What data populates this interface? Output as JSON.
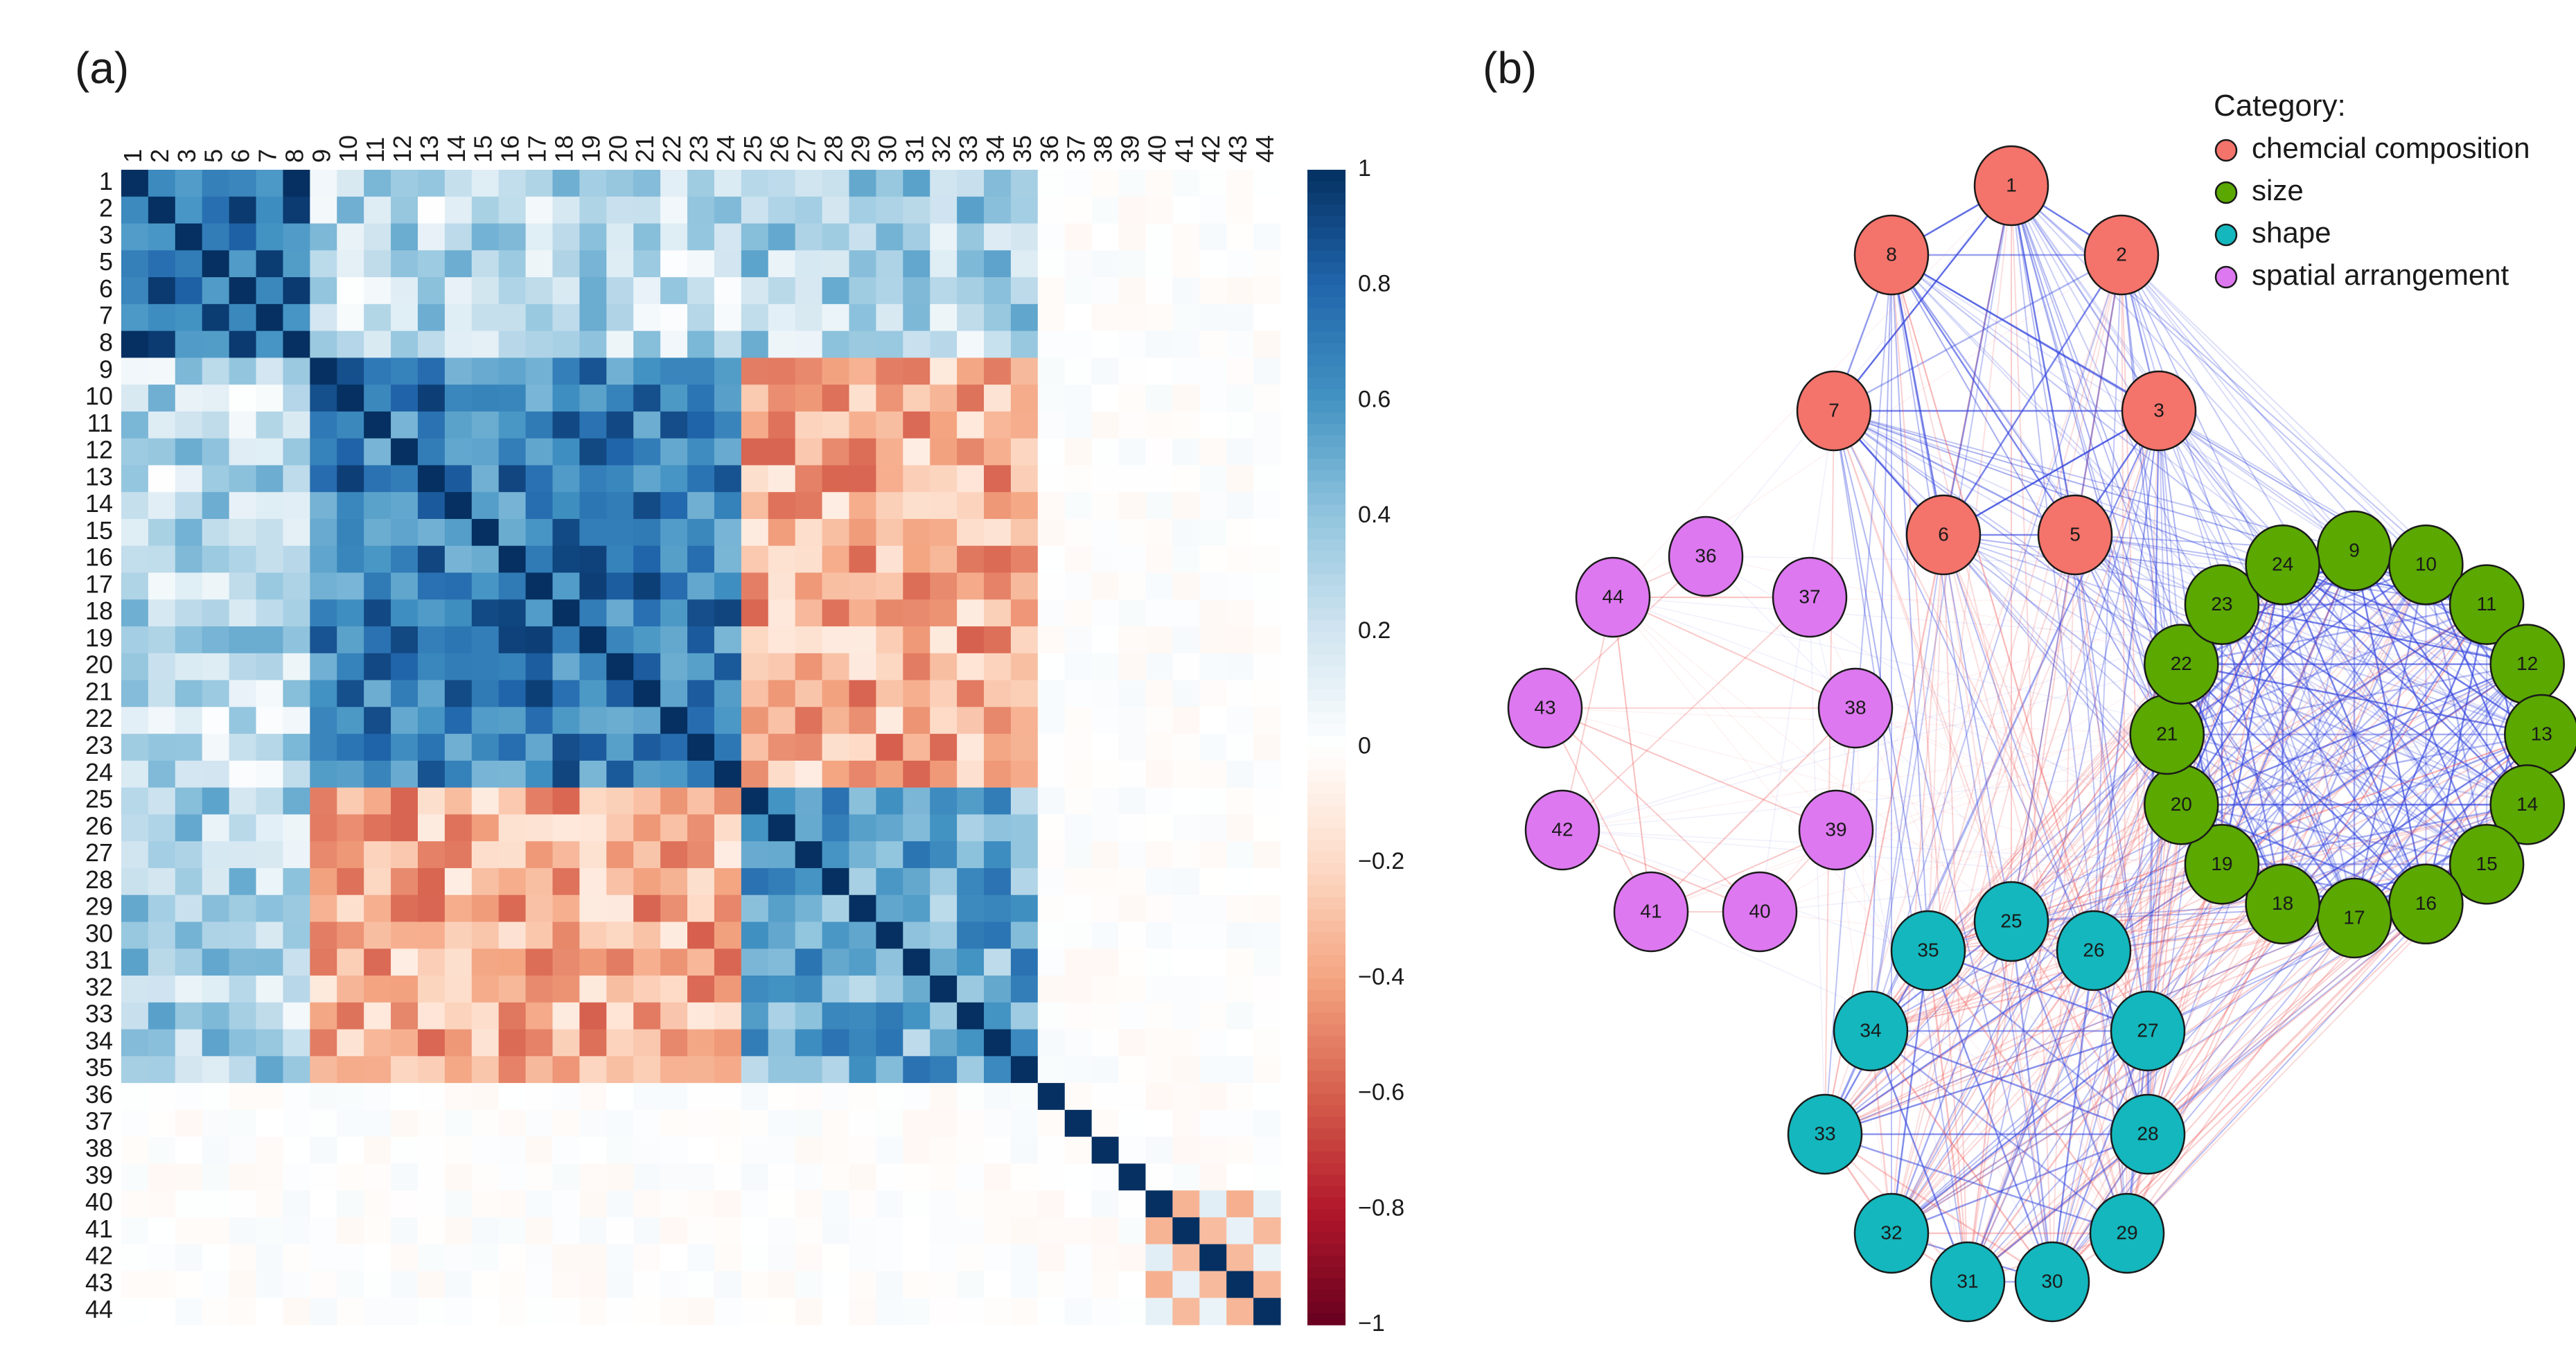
{
  "panel_a": {
    "label": "(a)",
    "chart_data": {
      "type": "heatmap",
      "title": "",
      "variables": [
        "1",
        "2",
        "3",
        "5",
        "6",
        "7",
        "8",
        "9",
        "10",
        "11",
        "12",
        "13",
        "14",
        "15",
        "16",
        "17",
        "18",
        "19",
        "20",
        "21",
        "22",
        "23",
        "24",
        "25",
        "26",
        "27",
        "28",
        "29",
        "30",
        "31",
        "32",
        "33",
        "34",
        "35",
        "36",
        "37",
        "38",
        "39",
        "40",
        "41",
        "42",
        "43",
        "44"
      ],
      "groups": [
        {
          "name": "chemical composition",
          "members": [
            "1",
            "2",
            "3",
            "5",
            "6",
            "7",
            "8"
          ]
        },
        {
          "name": "size",
          "members": [
            "9",
            "10",
            "11",
            "12",
            "13",
            "14",
            "15",
            "16",
            "17",
            "18",
            "19",
            "20",
            "21",
            "22",
            "23",
            "24"
          ]
        },
        {
          "name": "shape",
          "members": [
            "25",
            "26",
            "27",
            "28",
            "29",
            "30",
            "31",
            "32",
            "33",
            "34",
            "35"
          ]
        },
        {
          "name": "spatial arrangement",
          "members": [
            "36",
            "37",
            "38",
            "39",
            "40",
            "41",
            "42",
            "43",
            "44"
          ]
        }
      ],
      "approx_block_correlations": {
        "within_chemical_composition": 0.8,
        "within_size": 0.7,
        "within_shape": 0.5,
        "chemical_vs_size": 0.25,
        "chemical_vs_shape": 0.3,
        "size_vs_shape": -0.35,
        "within_spatial": -0.3,
        "spatial_vs_other": 0.0
      },
      "colorbar": {
        "range": [
          -1,
          1
        ],
        "ticks": [
          1,
          0.8,
          0.6,
          0.4,
          0.2,
          0,
          -0.2,
          -0.4,
          -0.6,
          -0.8,
          -1
        ],
        "tick_labels": [
          "1",
          "0.8",
          "0.6",
          "0.4",
          "0.2",
          "0",
          "−0.2",
          "−0.4",
          "−0.6",
          "−0.8",
          "−1"
        ],
        "colors": [
          "#053061",
          "#2166ac",
          "#4393c3",
          "#92c5de",
          "#d1e5f0",
          "#ffffff",
          "#fddbc7",
          "#f4a582",
          "#d6604d",
          "#b2182b",
          "#67001f"
        ]
      }
    }
  },
  "panel_b": {
    "label": "(b)",
    "legend": {
      "title": "Category:",
      "entries": [
        {
          "key": "chem",
          "label": "chemcial composition",
          "color": "#f4736b"
        },
        {
          "key": "size",
          "label": "size",
          "color": "#5aa800"
        },
        {
          "key": "shape",
          "label": "shape",
          "color": "#13b7bd"
        },
        {
          "key": "spatial",
          "label": "spatial arrangement",
          "color": "#dd78f0"
        }
      ]
    },
    "chart_data": {
      "type": "network",
      "nodes": [
        {
          "id": "1",
          "category": "chem"
        },
        {
          "id": "2",
          "category": "chem"
        },
        {
          "id": "3",
          "category": "chem"
        },
        {
          "id": "5",
          "category": "chem"
        },
        {
          "id": "6",
          "category": "chem"
        },
        {
          "id": "7",
          "category": "chem"
        },
        {
          "id": "8",
          "category": "chem"
        },
        {
          "id": "9",
          "category": "size"
        },
        {
          "id": "10",
          "category": "size"
        },
        {
          "id": "11",
          "category": "size"
        },
        {
          "id": "12",
          "category": "size"
        },
        {
          "id": "13",
          "category": "size"
        },
        {
          "id": "14",
          "category": "size"
        },
        {
          "id": "15",
          "category": "size"
        },
        {
          "id": "16",
          "category": "size"
        },
        {
          "id": "17",
          "category": "size"
        },
        {
          "id": "18",
          "category": "size"
        },
        {
          "id": "19",
          "category": "size"
        },
        {
          "id": "20",
          "category": "size"
        },
        {
          "id": "21",
          "category": "size"
        },
        {
          "id": "22",
          "category": "size"
        },
        {
          "id": "23",
          "category": "size"
        },
        {
          "id": "24",
          "category": "size"
        },
        {
          "id": "25",
          "category": "shape"
        },
        {
          "id": "26",
          "category": "shape"
        },
        {
          "id": "27",
          "category": "shape"
        },
        {
          "id": "28",
          "category": "shape"
        },
        {
          "id": "29",
          "category": "shape"
        },
        {
          "id": "30",
          "category": "shape"
        },
        {
          "id": "31",
          "category": "shape"
        },
        {
          "id": "32",
          "category": "shape"
        },
        {
          "id": "33",
          "category": "shape"
        },
        {
          "id": "34",
          "category": "shape"
        },
        {
          "id": "35",
          "category": "shape"
        },
        {
          "id": "36",
          "category": "spatial"
        },
        {
          "id": "37",
          "category": "spatial"
        },
        {
          "id": "38",
          "category": "spatial"
        },
        {
          "id": "39",
          "category": "spatial"
        },
        {
          "id": "40",
          "category": "spatial"
        },
        {
          "id": "41",
          "category": "spatial"
        },
        {
          "id": "42",
          "category": "spatial"
        },
        {
          "id": "43",
          "category": "spatial"
        },
        {
          "id": "44",
          "category": "spatial"
        }
      ],
      "edge_colors": {
        "positive": "#3344dd",
        "negative": "#ee5555"
      }
    }
  }
}
